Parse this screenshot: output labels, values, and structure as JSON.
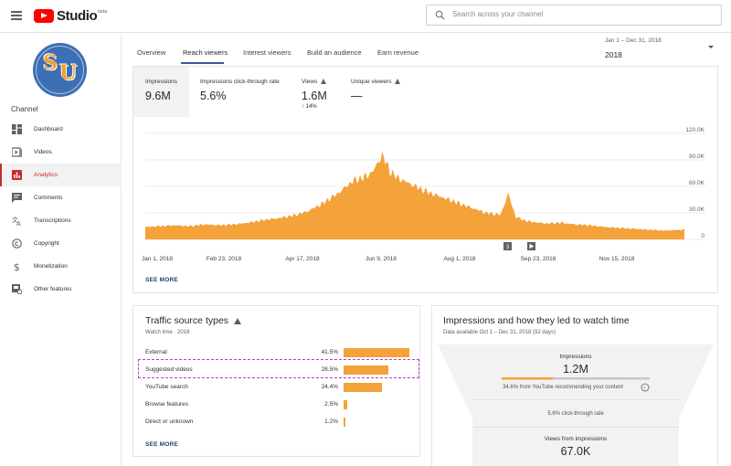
{
  "app": {
    "brand": "Studio",
    "beta": "beta",
    "search_placeholder": "Search across your channel"
  },
  "sidebar": {
    "channel_label": "Channel",
    "avatar_letters": [
      "S",
      "U"
    ],
    "items": [
      {
        "label": "Dashboard",
        "icon": "dashboard-icon"
      },
      {
        "label": "Videos",
        "icon": "videos-icon"
      },
      {
        "label": "Analytics",
        "icon": "analytics-icon",
        "active": true
      },
      {
        "label": "Comments",
        "icon": "comments-icon"
      },
      {
        "label": "Transcriptions",
        "icon": "transcriptions-icon"
      },
      {
        "label": "Copyright",
        "icon": "copyright-icon"
      },
      {
        "label": "Monetization",
        "icon": "monetization-icon"
      },
      {
        "label": "Other features",
        "icon": "other-features-icon"
      }
    ]
  },
  "tabs": [
    "Overview",
    "Reach viewers",
    "Interest viewers",
    "Build an audience",
    "Earn revenue"
  ],
  "active_tab": "Reach viewers",
  "date_range": {
    "range": "Jan 1 – Dec 31, 2018",
    "label": "2018"
  },
  "metrics": [
    {
      "label": "Impressions",
      "value": "9.6M",
      "change": "",
      "warning": false,
      "selected": true
    },
    {
      "label": "Impressions click-through rate",
      "value": "5.6%",
      "change": "",
      "warning": false
    },
    {
      "label": "Views",
      "value": "1.6M",
      "change": "14%",
      "warning": true
    },
    {
      "label": "Unique viewers",
      "value": "—",
      "change": "",
      "warning": true
    }
  ],
  "chart_data": {
    "type": "area",
    "x_tick_labels": [
      "Jan 1, 2018",
      "Feb 23, 2018",
      "Apr 17, 2018",
      "Jun 9, 2018",
      "Aug 1, 2018",
      "Sep 23, 2018",
      "Nov 15, 2018"
    ],
    "y_tick_labels": [
      "120.0K",
      "90.0K",
      "60.0K",
      "30.0K",
      "0"
    ],
    "ylim": [
      0,
      120000
    ],
    "xlim": [
      0,
      364
    ],
    "grid": true,
    "color": "#f4a23a",
    "series": [
      {
        "x": [
          0,
          10,
          20,
          30,
          40,
          50,
          60,
          70,
          80,
          90,
          100,
          110,
          120,
          130,
          140,
          150,
          155,
          160,
          165,
          170,
          175,
          180,
          190,
          200,
          210,
          220,
          230,
          240,
          245,
          250,
          255,
          260,
          270,
          280,
          290,
          300,
          310,
          320,
          330,
          340,
          350,
          364
        ],
        "values": [
          14000,
          15000,
          16000,
          15000,
          17000,
          16000,
          17000,
          19000,
          22000,
          24000,
          27000,
          32000,
          41000,
          52000,
          66000,
          72000,
          80000,
          96000,
          78000,
          70000,
          66000,
          62000,
          54000,
          48000,
          42000,
          36000,
          30000,
          28000,
          52000,
          26000,
          22000,
          20000,
          18000,
          19000,
          17000,
          16000,
          14000,
          13000,
          12000,
          11000,
          10000,
          11000
        ]
      }
    ],
    "markers": [
      "3",
      "play"
    ]
  },
  "see_more": "SEE MORE",
  "traffic": {
    "title": "Traffic source types",
    "subtitle": "Watch time · 2018",
    "rows": [
      {
        "name": "External",
        "pct": "41.5%",
        "value": 41.5
      },
      {
        "name": "Suggested videos",
        "pct": "28.5%",
        "value": 28.5
      },
      {
        "name": "YouTube search",
        "pct": "24.4%",
        "value": 24.4
      },
      {
        "name": "Browse features",
        "pct": "2.5%",
        "value": 2.5
      },
      {
        "name": "Direct or unknown",
        "pct": "1.2%",
        "value": 1.2
      }
    ]
  },
  "funnel": {
    "title": "Impressions and how they led to watch time",
    "subtitle": "Data available Oct 1 – Dec 31, 2018 (92 days)",
    "impressions_label": "Impressions",
    "impressions_value": "1.2M",
    "progress_fraction": 0.346,
    "recommend_text": "34.6% from YouTube recommending your content",
    "ctr_text": "5.6% click-through rate",
    "views_label": "Views from impressions",
    "views_value": "67.0K"
  },
  "colors": {
    "accent": "#f4a23a",
    "active_nav": "#c4302b",
    "tab_underline": "#3b5998"
  }
}
